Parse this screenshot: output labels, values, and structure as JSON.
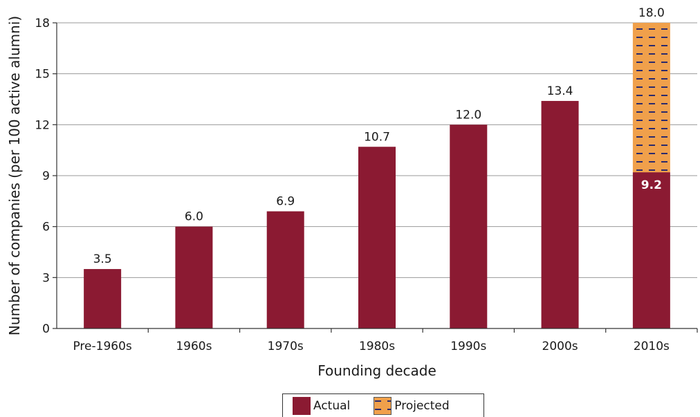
{
  "chart_data": {
    "type": "bar",
    "xlabel": "Founding decade",
    "ylabel": "Number of companies (per 100 active alumni)",
    "categories": [
      "Pre-1960s",
      "1960s",
      "1970s",
      "1980s",
      "1990s",
      "2000s",
      "2010s"
    ],
    "series": [
      {
        "name": "Actual",
        "color": "#8b1a32",
        "values": [
          3.5,
          6.0,
          6.9,
          10.7,
          12.0,
          13.4,
          9.2
        ],
        "labels": [
          "3.5",
          "6.0",
          "6.9",
          "10.7",
          "12.0",
          "13.4",
          "9.2"
        ]
      },
      {
        "name": "Projected",
        "color": "#f0a04b",
        "dash_color": "#2a2a6e",
        "pattern": "dashes",
        "stacked_on": "Actual",
        "values": [
          null,
          null,
          null,
          null,
          null,
          null,
          8.8
        ],
        "total_labels": [
          null,
          null,
          null,
          null,
          null,
          null,
          "18.0"
        ]
      }
    ],
    "ylim": [
      0,
      18
    ],
    "yticks": [
      "0",
      "3",
      "6",
      "9",
      "12",
      "15",
      "18"
    ],
    "grid": true,
    "legend": "bottom-center"
  }
}
